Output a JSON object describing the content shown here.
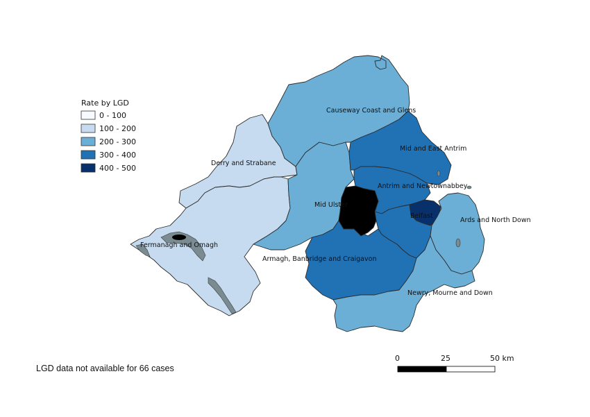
{
  "legend": {
    "title": "Rate by LGD",
    "classes": [
      {
        "label": "0 - 100",
        "color": "#f7fbff"
      },
      {
        "label": "100 - 200",
        "color": "#c6dbef"
      },
      {
        "label": "200 - 300",
        "color": "#6baed6"
      },
      {
        "label": "300 - 400",
        "color": "#2171b5"
      },
      {
        "label": "400 - 500",
        "color": "#08306b"
      }
    ]
  },
  "regions": [
    {
      "key": "causeway",
      "name": "Causeway Coast and Glens",
      "class": "200 - 300",
      "color": "#6baed6"
    },
    {
      "key": "derry",
      "name": "Derry and Strabane",
      "class": "100 - 200",
      "color": "#c6dbef"
    },
    {
      "key": "fermanagh",
      "name": "Fermanagh and Omagh",
      "class": "100 - 200",
      "color": "#c6dbef"
    },
    {
      "key": "midulster",
      "name": "Mid Ulster",
      "class": "200 - 300",
      "color": "#6baed6"
    },
    {
      "key": "midantrim",
      "name": "Mid and East Antrim",
      "class": "300 - 400",
      "color": "#2171b5"
    },
    {
      "key": "antrimnewt",
      "name": "Antrim and Newtownabbey",
      "class": "300 - 400",
      "color": "#2171b5"
    },
    {
      "key": "belfast",
      "name": "Belfast",
      "class": "400 - 500",
      "color": "#08306b"
    },
    {
      "key": "lisburn",
      "name": "",
      "class": "300 - 400",
      "color": "#2171b5"
    },
    {
      "key": "ards",
      "name": "Ards and North Down",
      "class": "200 - 300",
      "color": "#6baed6"
    },
    {
      "key": "armagh",
      "name": "Armagh, Banbridge and Craigavon",
      "class": "300 - 400",
      "color": "#2171b5"
    },
    {
      "key": "newry",
      "name": "Newry, Mourne and Down",
      "class": "200 - 300",
      "color": "#6baed6"
    }
  ],
  "note": "LGD data not available for 66 cases",
  "scalebar": {
    "ticks": [
      "0",
      "25",
      "50 km"
    ]
  }
}
